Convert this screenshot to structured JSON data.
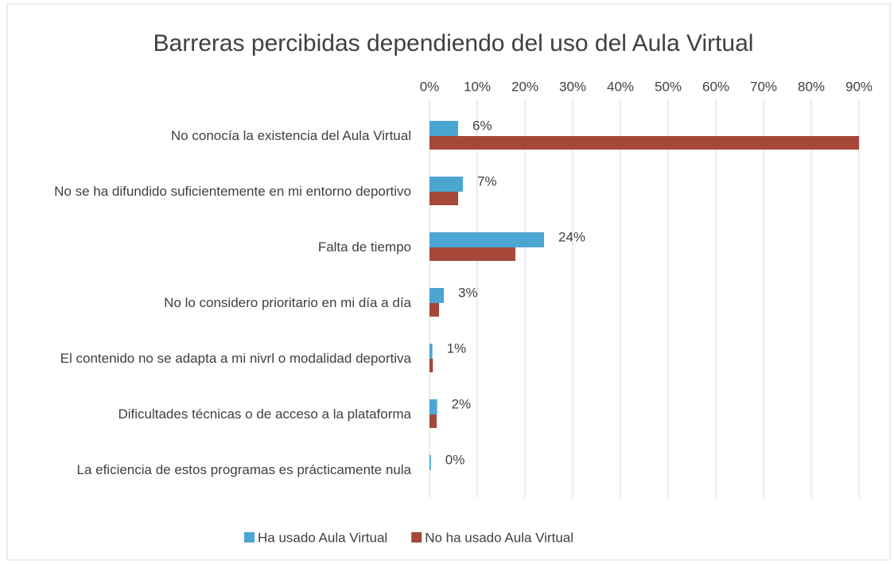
{
  "chart_data": {
    "type": "bar",
    "orientation": "horizontal",
    "title": "Barreras percibidas dependiendo del uso del Aula Virtual",
    "categories": [
      "No conocía la existencia del Aula Virtual",
      "No se ha difundido suficientemente en mi entorno deportivo",
      "Falta de tiempo",
      "No lo considero prioritario en mi día a día",
      "El contenido no se adapta a mi nivrl o modalidad deportiva",
      "Dificultades técnicas o de acceso a la plataforma",
      "La eficiencia de estos programas es prácticamente nula"
    ],
    "series": [
      {
        "name": "Ha usado Aula Virtual",
        "color": "#4ba6d2",
        "values": [
          6,
          7,
          24,
          3,
          0.6,
          1.6,
          0.3
        ],
        "value_labels": [
          "6%",
          "7%",
          "24%",
          "3%",
          "1%",
          "2%",
          "0%"
        ]
      },
      {
        "name": "No ha usado Aula Virtual",
        "color": "#a5483a",
        "values": [
          90,
          6,
          18,
          2,
          0.7,
          1.5,
          0
        ]
      }
    ],
    "xlim": [
      0,
      90
    ],
    "xticks": [
      {
        "value": 0,
        "label": "0%"
      },
      {
        "value": 10,
        "label": "10%"
      },
      {
        "value": 20,
        "label": "20%"
      },
      {
        "value": 30,
        "label": "30%"
      },
      {
        "value": 40,
        "label": "40%"
      },
      {
        "value": 50,
        "label": "50%"
      },
      {
        "value": 60,
        "label": "60%"
      },
      {
        "value": 70,
        "label": "70%"
      },
      {
        "value": 80,
        "label": "80%"
      },
      {
        "value": 90,
        "label": "90%"
      }
    ],
    "grid": true,
    "legend": "bottom"
  }
}
